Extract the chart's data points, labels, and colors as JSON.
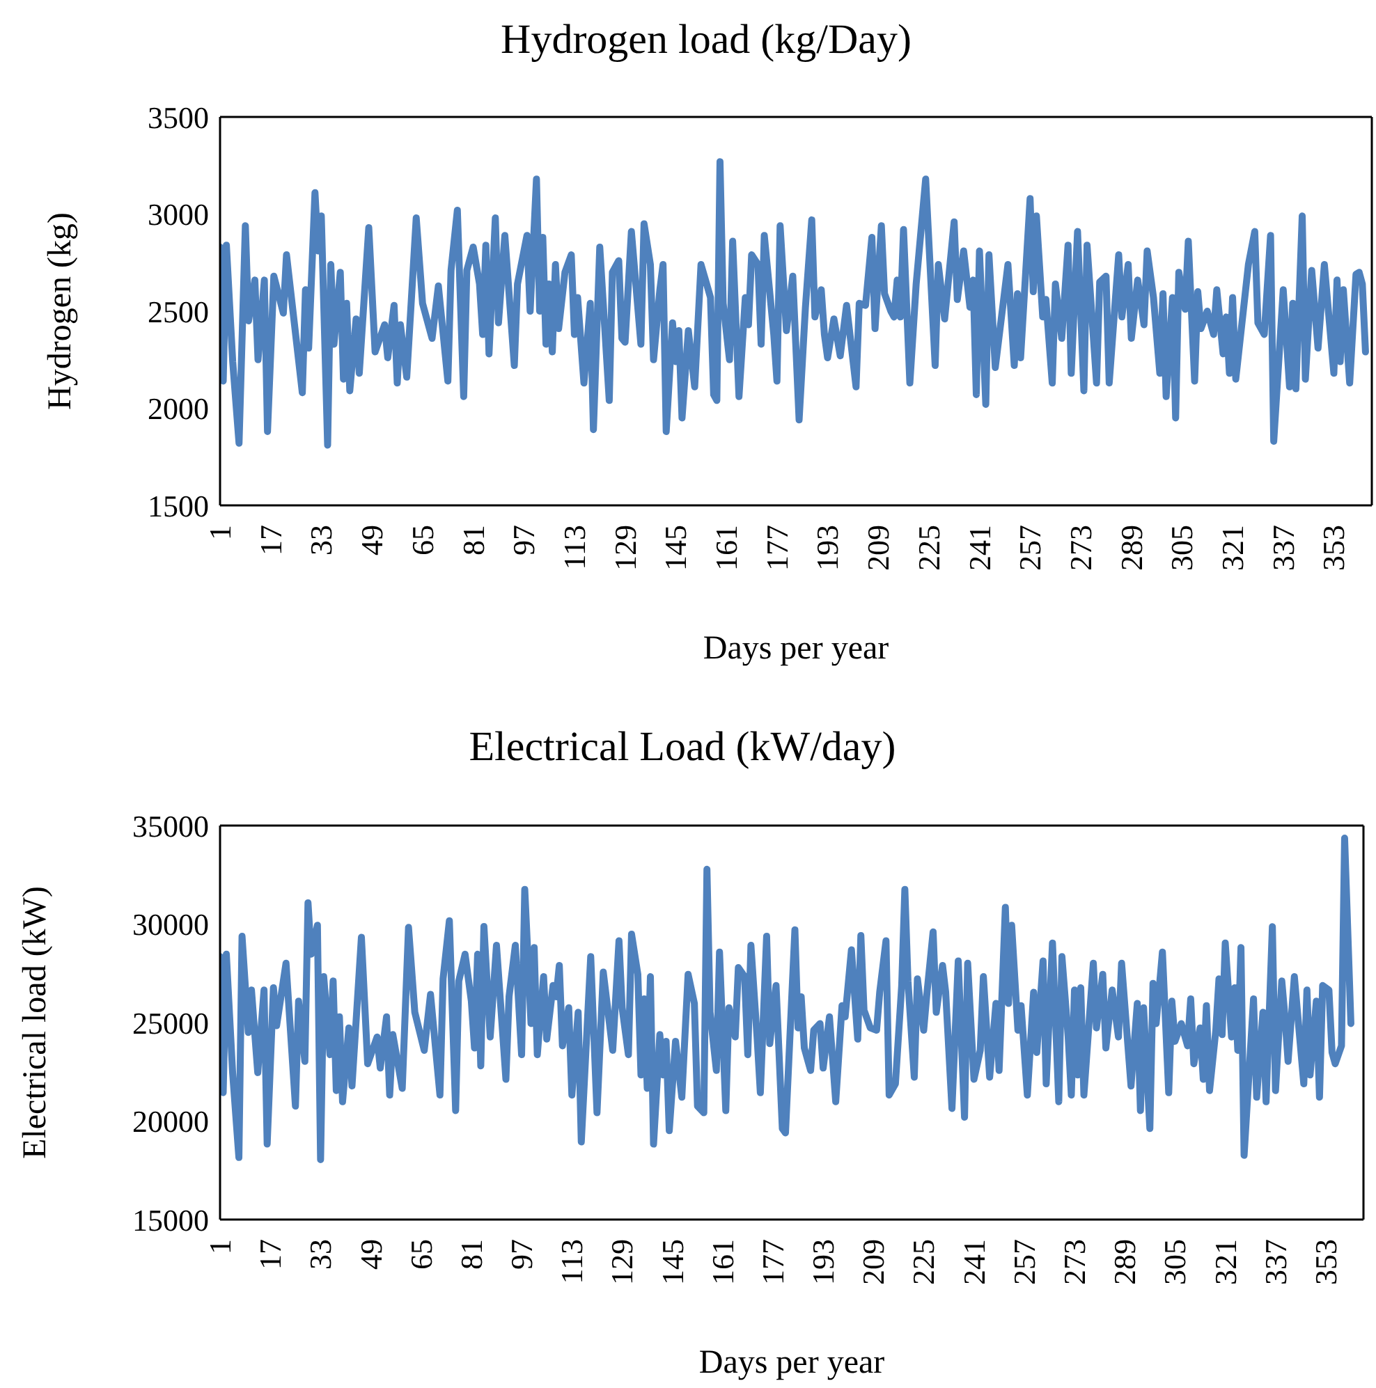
{
  "chart_data": [
    {
      "type": "line",
      "title": "Hydrogen load (kg/Day)",
      "xlabel": "Days per year",
      "ylabel": "Hydrogen (kg)",
      "xlim": [
        1,
        365
      ],
      "xticks": [
        1,
        17,
        33,
        49,
        65,
        81,
        97,
        113,
        129,
        145,
        161,
        177,
        193,
        209,
        225,
        241,
        257,
        273,
        289,
        305,
        321,
        337,
        353
      ],
      "ylim": [
        1500,
        3500
      ],
      "yticks": [
        1500,
        2000,
        2500,
        3000,
        3500
      ],
      "series": [
        {
          "color": "#4f81bd",
          "x": [
            1,
            2,
            3,
            5,
            7,
            9,
            10,
            12,
            13,
            15,
            16,
            18,
            21,
            22,
            27,
            28,
            29,
            31,
            32,
            33,
            35,
            36,
            37,
            39,
            40,
            41,
            42,
            44,
            45,
            48,
            50,
            53,
            54,
            56,
            57,
            58,
            60,
            63,
            65,
            68,
            70,
            73,
            74,
            76,
            78,
            79,
            81,
            83,
            84,
            85,
            86,
            88,
            89,
            91,
            94,
            95,
            98,
            99,
            101,
            102,
            103,
            104,
            105,
            106,
            107,
            108,
            110,
            112,
            113,
            114,
            116,
            118,
            119,
            121,
            124,
            125,
            127,
            128,
            129,
            131,
            134,
            135,
            137,
            138,
            140,
            141,
            142,
            144,
            145,
            146,
            147,
            149,
            151,
            153,
            156,
            157,
            158,
            159,
            160,
            162,
            163,
            165,
            167,
            168,
            169,
            171,
            172,
            173,
            176,
            177,
            178,
            180,
            182,
            184,
            186,
            188,
            189,
            191,
            192,
            193,
            195,
            197,
            199,
            202,
            203,
            205,
            207,
            208,
            210,
            211,
            213,
            214,
            215,
            216,
            217,
            219,
            221,
            224,
            227,
            228,
            230,
            233,
            234,
            236,
            238,
            239,
            240,
            241,
            243,
            244,
            246,
            250,
            252,
            253,
            254,
            257,
            258,
            259,
            261,
            262,
            264,
            265,
            267,
            269,
            270,
            272,
            274,
            275,
            278,
            279,
            281,
            282,
            285,
            286,
            288,
            289,
            291,
            293,
            294,
            296,
            298,
            299,
            300,
            302,
            303,
            304,
            306,
            307,
            309,
            310,
            311,
            313,
            315,
            316,
            318,
            319,
            320,
            321,
            322,
            326,
            328,
            329,
            331,
            333,
            334,
            337,
            339,
            340,
            341,
            343,
            344,
            346,
            348,
            350,
            353,
            354,
            355,
            356,
            358,
            360,
            361,
            362,
            363
          ],
          "values": [
            2830,
            2140,
            2840,
            2240,
            1820,
            2940,
            2450,
            2660,
            2250,
            2660,
            1880,
            2680,
            2490,
            2790,
            2080,
            2610,
            2310,
            3110,
            2810,
            2990,
            1810,
            2740,
            2330,
            2700,
            2150,
            2540,
            2090,
            2460,
            2180,
            2930,
            2290,
            2430,
            2260,
            2530,
            2130,
            2430,
            2160,
            2980,
            2540,
            2360,
            2630,
            2140,
            2710,
            3020,
            2060,
            2710,
            2830,
            2640,
            2380,
            2840,
            2280,
            2980,
            2440,
            2890,
            2220,
            2640,
            2890,
            2500,
            3180,
            2500,
            2880,
            2330,
            2640,
            2290,
            2740,
            2410,
            2700,
            2790,
            2380,
            2570,
            2130,
            2540,
            1890,
            2830,
            2040,
            2700,
            2760,
            2360,
            2340,
            2910,
            2330,
            2950,
            2740,
            2250,
            2610,
            2740,
            1880,
            2440,
            2240,
            2400,
            1950,
            2400,
            2110,
            2740,
            2570,
            2070,
            2040,
            3270,
            2540,
            2250,
            2860,
            2060,
            2570,
            2430,
            2790,
            2740,
            2330,
            2890,
            2380,
            2140,
            2940,
            2400,
            2680,
            1940,
            2520,
            2970,
            2470,
            2610,
            2380,
            2260,
            2460,
            2270,
            2530,
            2110,
            2540,
            2530,
            2880,
            2410,
            2940,
            2590,
            2500,
            2470,
            2660,
            2470,
            2920,
            2130,
            2640,
            3180,
            2220,
            2740,
            2460,
            2960,
            2560,
            2810,
            2520,
            2660,
            2070,
            2810,
            2020,
            2790,
            2210,
            2740,
            2220,
            2590,
            2260,
            3080,
            2600,
            2990,
            2470,
            2560,
            2130,
            2640,
            2360,
            2840,
            2180,
            2910,
            2090,
            2840,
            2130,
            2650,
            2680,
            2130,
            2790,
            2470,
            2740,
            2360,
            2660,
            2430,
            2810,
            2570,
            2180,
            2590,
            2060,
            2570,
            1950,
            2700,
            2510,
            2860,
            2140,
            2600,
            2410,
            2500,
            2380,
            2610,
            2280,
            2470,
            2180,
            2570,
            2150,
            2740,
            2910,
            2440,
            2380,
            2890,
            1830,
            2610,
            2110,
            2540,
            2100,
            2990,
            2150,
            2710,
            2310,
            2740,
            2180,
            2660,
            2240,
            2610,
            2130,
            2690,
            2700,
            2640,
            2290
          ]
        }
      ]
    },
    {
      "type": "line",
      "title": "Electrical Load (kW/day)",
      "xlabel": "Days per year",
      "ylabel": "Electrical load (kW)",
      "xlim": [
        1,
        365
      ],
      "xticks": [
        1,
        17,
        33,
        49,
        65,
        81,
        97,
        113,
        129,
        145,
        161,
        177,
        193,
        209,
        225,
        241,
        257,
        273,
        289,
        305,
        321,
        337,
        353
      ],
      "ylim": [
        15000,
        35000
      ],
      "yticks": [
        15000,
        20000,
        25000,
        30000,
        35000
      ],
      "series": [
        {
          "color": "#4f81bd",
          "x": [
            1,
            2,
            3,
            5,
            7,
            8,
            10,
            11,
            13,
            15,
            16,
            18,
            19,
            22,
            25,
            26,
            28,
            29,
            30,
            32,
            33,
            34,
            36,
            37,
            38,
            39,
            40,
            42,
            43,
            46,
            48,
            51,
            52,
            54,
            55,
            56,
            59,
            61,
            63,
            66,
            68,
            71,
            72,
            74,
            76,
            77,
            79,
            81,
            82,
            83,
            84,
            85,
            87,
            89,
            92,
            93,
            95,
            97,
            98,
            100,
            101,
            102,
            104,
            105,
            107,
            108,
            109,
            110,
            112,
            113,
            115,
            116,
            119,
            121,
            123,
            126,
            128,
            129,
            131,
            132,
            134,
            135,
            136,
            137,
            138,
            139,
            141,
            142,
            143,
            144,
            146,
            148,
            150,
            152,
            153,
            155,
            156,
            157,
            159,
            160,
            162,
            163,
            165,
            166,
            168,
            169,
            170,
            172,
            173,
            175,
            176,
            178,
            180,
            181,
            184,
            185,
            186,
            187,
            189,
            190,
            192,
            193,
            195,
            197,
            199,
            200,
            202,
            204,
            205,
            206,
            208,
            210,
            211,
            213,
            214,
            216,
            218,
            219,
            220,
            222,
            223,
            225,
            226,
            228,
            229,
            231,
            232,
            234,
            236,
            238,
            239,
            241,
            243,
            244,
            246,
            248,
            249,
            251,
            252,
            253,
            255,
            256,
            258,
            260,
            261,
            263,
            264,
            266,
            268,
            269,
            271,
            272,
            273,
            274,
            275,
            276,
            279,
            280,
            282,
            283,
            285,
            287,
            288,
            291,
            293,
            294,
            295,
            297,
            298,
            299,
            301,
            303,
            304,
            305,
            307,
            309,
            310,
            311,
            313,
            314,
            315,
            316,
            318,
            319,
            320,
            321,
            323,
            324,
            325,
            326,
            327,
            330,
            331,
            333,
            334,
            336,
            337,
            339,
            340,
            341,
            343,
            346,
            347,
            348,
            350,
            351,
            352,
            354,
            355,
            356,
            358,
            359,
            361
          ],
          "values": [
            28350,
            21440,
            28470,
            22460,
            18150,
            29380,
            24500,
            26650,
            22460,
            26650,
            18830,
            26770,
            24840,
            28010,
            20760,
            26090,
            23030,
            31080,
            28470,
            29940,
            18040,
            27330,
            23370,
            27110,
            21550,
            25290,
            20980,
            24730,
            21780,
            29330,
            22910,
            24270,
            22690,
            25290,
            21320,
            24390,
            21660,
            29830,
            25520,
            23590,
            26430,
            21320,
            27220,
            30170,
            20530,
            27110,
            28470,
            26090,
            23710,
            28470,
            22800,
            29880,
            24270,
            28920,
            22120,
            26310,
            28920,
            23370,
            31760,
            24950,
            28810,
            23370,
            27330,
            24160,
            26880,
            26310,
            27900,
            23820,
            25750,
            21320,
            25520,
            18940,
            28350,
            20420,
            27560,
            23590,
            29150,
            25750,
            23370,
            29490,
            27450,
            22340,
            26200,
            21660,
            27330,
            18830,
            24390,
            22340,
            24050,
            19510,
            24050,
            21210,
            27450,
            25970,
            20760,
            20420,
            32780,
            25520,
            22570,
            28580,
            20530,
            25750,
            24270,
            27790,
            27330,
            23370,
            28920,
            24160,
            21440,
            29380,
            23930,
            26880,
            19620,
            19400,
            29710,
            24730,
            26310,
            23710,
            22570,
            24610,
            24950,
            22690,
            25290,
            20980,
            25860,
            25290,
            28690,
            24160,
            29420,
            25630,
            24730,
            24610,
            26540,
            29150,
            21320,
            21890,
            26880,
            31760,
            27110,
            22230,
            27220,
            24610,
            26430,
            29600,
            25520,
            27900,
            26540,
            20640,
            28130,
            20190,
            28010,
            22120,
            23590,
            27330,
            22230,
            25970,
            22570,
            30850,
            25970,
            29940,
            24610,
            25860,
            21320,
            26540,
            23480,
            28130,
            21890,
            29040,
            20980,
            28350,
            24270,
            21320,
            26650,
            22340,
            26770,
            21320,
            28010,
            24730,
            27450,
            23710,
            26650,
            24270,
            28010,
            21780,
            25970,
            20530,
            25750,
            19620,
            26990,
            24950,
            28580,
            21440,
            26090,
            24050,
            24950,
            23820,
            26200,
            22910,
            24730,
            22120,
            25860,
            21550,
            24610,
            27220,
            24390,
            29040,
            24270,
            26770,
            23590,
            28810,
            18260,
            26200,
            21210,
            25520,
            20980,
            29870,
            21550,
            27110,
            25290,
            23030,
            27330,
            21890,
            26650,
            22340,
            26090,
            21210,
            26880,
            26650,
            23480,
            22910,
            23820,
            34360,
            24950
          ]
        }
      ]
    }
  ]
}
